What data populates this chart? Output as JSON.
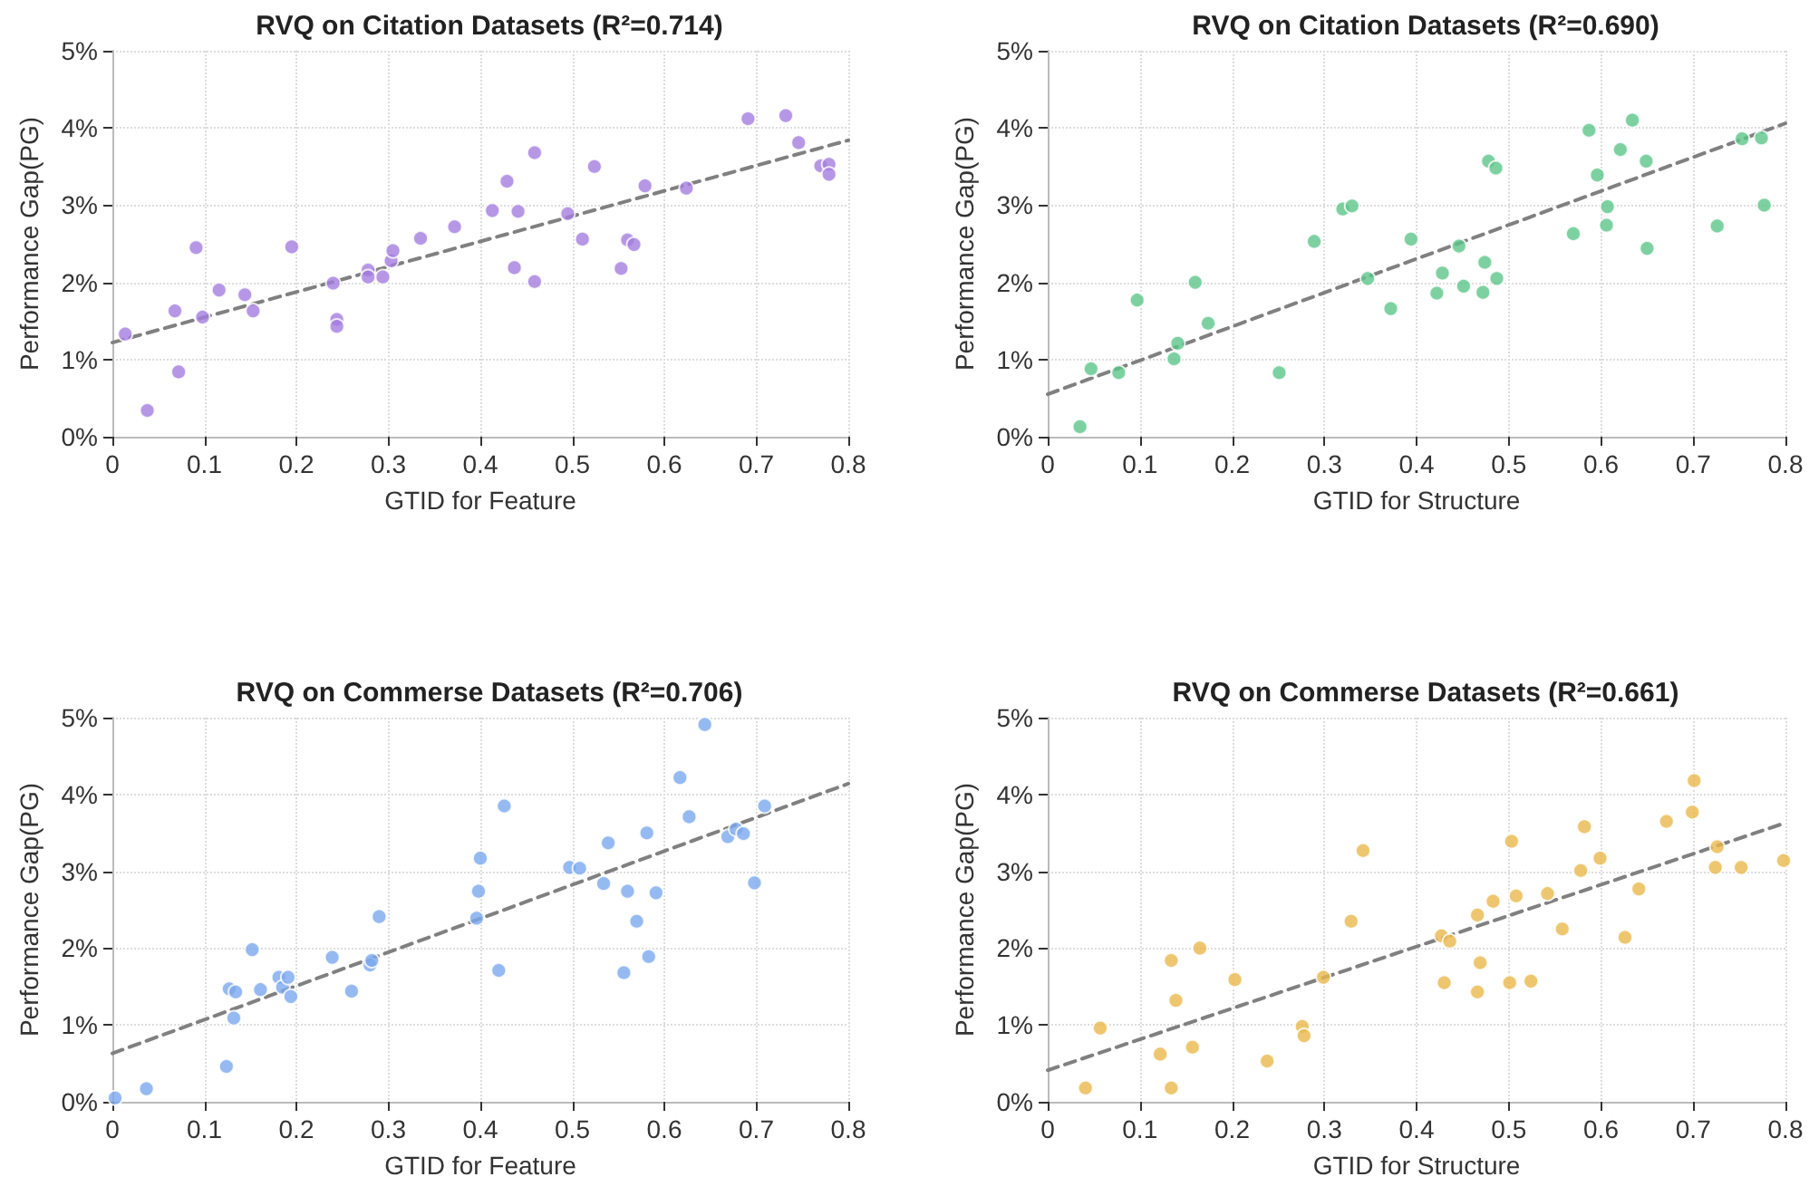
{
  "chart_data": [
    {
      "type": "scatter",
      "title": "RVQ on Citation Datasets (R²=0.714)",
      "xlabel": "GTID for Feature",
      "ylabel": "Performance Gap(PG)",
      "xlim": [
        0,
        0.8
      ],
      "ylim": [
        0,
        5
      ],
      "xticks": [
        0,
        0.1,
        0.2,
        0.3,
        0.4,
        0.5,
        0.6,
        0.7,
        0.8
      ],
      "yticks": [
        {
          "value": 0,
          "label": "0%"
        },
        {
          "value": 1,
          "label": "1%"
        },
        {
          "value": 2,
          "label": "2%"
        },
        {
          "value": 3,
          "label": "3%"
        },
        {
          "value": 4,
          "label": "4%"
        },
        {
          "value": 5,
          "label": "5%"
        }
      ],
      "grid": true,
      "marker": "circle",
      "series": [
        {
          "color": "#a47de0",
          "x": [
            0.014,
            0.038,
            0.068,
            0.072,
            0.091,
            0.098,
            0.116,
            0.144,
            0.153,
            0.195,
            0.24,
            0.244,
            0.244,
            0.278,
            0.278,
            0.294,
            0.303,
            0.305,
            0.335,
            0.372,
            0.413,
            0.429,
            0.437,
            0.441,
            0.459,
            0.459,
            0.495,
            0.511,
            0.524,
            0.553,
            0.56,
            0.567,
            0.579,
            0.624,
            0.691,
            0.732,
            0.746,
            0.77,
            0.779,
            0.779
          ],
          "values": [
            1.33,
            0.34,
            1.63,
            0.84,
            2.45,
            1.55,
            1.9,
            1.84,
            1.63,
            2.46,
            1.99,
            1.52,
            1.43,
            2.16,
            2.07,
            2.07,
            2.28,
            2.41,
            2.57,
            2.72,
            2.93,
            3.31,
            2.19,
            2.92,
            3.68,
            2.01,
            2.89,
            2.56,
            3.5,
            2.18,
            2.55,
            2.49,
            3.25,
            3.22,
            4.12,
            4.16,
            3.81,
            3.51,
            3.53,
            3.4
          ]
        },
        {
          "type": "line",
          "color": "#808080",
          "line_style": "dashed",
          "marker": "none",
          "x": [
            0,
            0.8
          ],
          "values": [
            1.22,
            3.84
          ]
        }
      ]
    },
    {
      "type": "scatter",
      "title": "RVQ on Citation Datasets (R²=0.690)",
      "xlabel": "GTID for Structure",
      "ylabel": "Performance Gap(PG)",
      "xlim": [
        0,
        0.8
      ],
      "ylim": [
        0,
        5
      ],
      "xticks": [
        0,
        0.1,
        0.2,
        0.3,
        0.4,
        0.5,
        0.6,
        0.7,
        0.8
      ],
      "yticks": [
        {
          "value": 0,
          "label": "0%"
        },
        {
          "value": 1,
          "label": "1%"
        },
        {
          "value": 2,
          "label": "2%"
        },
        {
          "value": 3,
          "label": "3%"
        },
        {
          "value": 4,
          "label": "4%"
        },
        {
          "value": 5,
          "label": "5%"
        }
      ],
      "grid": true,
      "marker": "circle",
      "series": [
        {
          "color": "#5cc58a",
          "x": [
            0.035,
            0.047,
            0.077,
            0.097,
            0.137,
            0.141,
            0.16,
            0.174,
            0.251,
            0.289,
            0.32,
            0.33,
            0.347,
            0.372,
            0.394,
            0.422,
            0.428,
            0.446,
            0.451,
            0.472,
            0.474,
            0.478,
            0.486,
            0.487,
            0.57,
            0.587,
            0.596,
            0.606,
            0.607,
            0.621,
            0.634,
            0.649,
            0.65,
            0.726,
            0.753,
            0.774,
            0.777
          ],
          "values": [
            0.13,
            0.88,
            0.83,
            1.77,
            1.01,
            1.21,
            2.0,
            1.47,
            0.83,
            2.53,
            2.95,
            2.99,
            2.05,
            1.66,
            2.56,
            1.86,
            2.12,
            2.47,
            1.95,
            1.87,
            2.26,
            3.57,
            3.48,
            2.05,
            2.63,
            3.97,
            3.39,
            2.74,
            2.98,
            3.72,
            4.1,
            3.57,
            2.44,
            2.73,
            3.86,
            3.87,
            3.0
          ]
        },
        {
          "type": "line",
          "color": "#808080",
          "line_style": "dashed",
          "marker": "none",
          "x": [
            0,
            0.8
          ],
          "values": [
            0.55,
            4.06
          ]
        }
      ]
    },
    {
      "type": "scatter",
      "title": "RVQ on Commerse Datasets (R²=0.706)",
      "xlabel": "GTID for Feature",
      "ylabel": "Performance Gap(PG)",
      "xlim": [
        0,
        0.8
      ],
      "ylim": [
        0,
        5
      ],
      "xticks": [
        0,
        0.1,
        0.2,
        0.3,
        0.4,
        0.5,
        0.6,
        0.7,
        0.8
      ],
      "yticks": [
        {
          "value": 0,
          "label": "0%"
        },
        {
          "value": 1,
          "label": "1%"
        },
        {
          "value": 2,
          "label": "2%"
        },
        {
          "value": 3,
          "label": "3%"
        },
        {
          "value": 4,
          "label": "4%"
        },
        {
          "value": 5,
          "label": "5%"
        }
      ],
      "grid": true,
      "marker": "circle",
      "series": [
        {
          "color": "#7ba7ee",
          "x": [
            0.003,
            0.037,
            0.124,
            0.127,
            0.132,
            0.134,
            0.152,
            0.161,
            0.181,
            0.185,
            0.191,
            0.194,
            0.239,
            0.26,
            0.28,
            0.282,
            0.29,
            0.396,
            0.398,
            0.4,
            0.42,
            0.426,
            0.497,
            0.508,
            0.534,
            0.539,
            0.556,
            0.56,
            0.57,
            0.581,
            0.583,
            0.591,
            0.617,
            0.627,
            0.644,
            0.669,
            0.678,
            0.686,
            0.698,
            0.709
          ],
          "values": [
            0.05,
            0.17,
            0.46,
            1.47,
            1.09,
            1.43,
            1.98,
            1.46,
            1.62,
            1.49,
            1.62,
            1.37,
            1.88,
            1.44,
            1.78,
            1.84,
            2.41,
            2.39,
            2.74,
            3.17,
            1.71,
            3.85,
            3.05,
            3.04,
            2.84,
            3.37,
            1.68,
            2.74,
            2.35,
            3.5,
            1.89,
            2.72,
            4.22,
            3.71,
            4.91,
            3.45,
            3.55,
            3.49,
            2.85,
            3.85
          ]
        },
        {
          "type": "line",
          "color": "#808080",
          "line_style": "dashed",
          "marker": "none",
          "x": [
            0,
            0.8
          ],
          "values": [
            0.63,
            4.14
          ]
        }
      ]
    },
    {
      "type": "scatter",
      "title": "RVQ on Commerse Datasets (R²=0.661)",
      "xlabel": "GTID for Structure",
      "ylabel": "Performance Gap(PG)",
      "xlim": [
        0,
        0.8
      ],
      "ylim": [
        0,
        5
      ],
      "xticks": [
        0,
        0.1,
        0.2,
        0.3,
        0.4,
        0.5,
        0.6,
        0.7,
        0.8
      ],
      "yticks": [
        {
          "value": 0,
          "label": "0%"
        },
        {
          "value": 1,
          "label": "1%"
        },
        {
          "value": 2,
          "label": "2%"
        },
        {
          "value": 3,
          "label": "3%"
        },
        {
          "value": 4,
          "label": "4%"
        },
        {
          "value": 5,
          "label": "5%"
        }
      ],
      "grid": true,
      "marker": "circle",
      "series": [
        {
          "color": "#e8b84b",
          "x": [
            0.041,
            0.057,
            0.122,
            0.134,
            0.134,
            0.139,
            0.157,
            0.165,
            0.203,
            0.238,
            0.276,
            0.278,
            0.299,
            0.329,
            0.342,
            0.427,
            0.43,
            0.436,
            0.466,
            0.466,
            0.469,
            0.483,
            0.501,
            0.503,
            0.508,
            0.524,
            0.542,
            0.558,
            0.578,
            0.582,
            0.599,
            0.626,
            0.641,
            0.671,
            0.699,
            0.701,
            0.724,
            0.726,
            0.752,
            0.798
          ],
          "values": [
            0.18,
            0.96,
            0.62,
            0.18,
            1.84,
            1.32,
            0.71,
            2.0,
            1.59,
            0.53,
            0.98,
            0.86,
            1.62,
            2.35,
            3.27,
            2.16,
            1.55,
            2.09,
            1.43,
            2.43,
            1.81,
            2.61,
            1.55,
            3.39,
            2.68,
            1.57,
            2.71,
            2.25,
            3.01,
            3.58,
            3.17,
            2.14,
            2.77,
            3.65,
            3.77,
            4.18,
            3.05,
            3.32,
            3.05,
            3.14
          ]
        },
        {
          "type": "line",
          "color": "#808080",
          "line_style": "dashed",
          "marker": "none",
          "x": [
            0,
            0.8
          ],
          "values": [
            0.41,
            3.63
          ]
        }
      ]
    }
  ]
}
